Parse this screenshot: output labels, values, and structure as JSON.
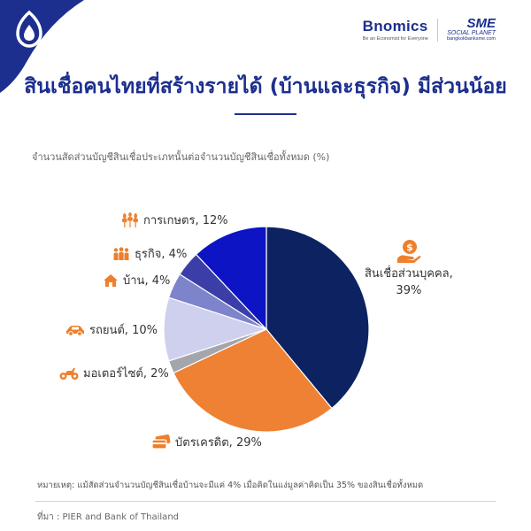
{
  "header": {
    "brand_name": "Bnomics",
    "brand_tagline": "Be an Economist for Everyone",
    "partner_name": "SME",
    "partner_sub": "SOCIAL PLANET",
    "partner_url": "bangkokbanksme.com"
  },
  "colors": {
    "accent": "#1c2f8f",
    "corner": "#1c2f8f",
    "icon": "#ee7f2d"
  },
  "chart_data": {
    "type": "pie",
    "title": "สินเชื่อคนไทยที่สร้างรายได้ (บ้านและธุรกิจ) มีส่วนน้อย",
    "subtitle": "จำนวนสัดส่วนบัญชีสินเชื่อประเภทนั้นต่อจำนวนบัญชีสินเชื่อทั้งหมด (%)",
    "unit": "%",
    "start_angle_deg": 0,
    "direction": "clockwise",
    "slices": [
      {
        "label": "สินเชื่อส่วนบุคคล",
        "value": 39,
        "display": "สินเชื่อส่วนบุคคล,",
        "display2": "39%",
        "color": "#0d2260",
        "icon": "money-hand-icon"
      },
      {
        "label": "บัตรเครดิต",
        "value": 29,
        "display": "บัตรเครดิต, 29%",
        "color": "#ee8133",
        "icon": "credit-card-icon"
      },
      {
        "label": "มอเตอร์ไซต์",
        "value": 2,
        "display": "มอเตอร์ไซต์, 2%",
        "color": "#a4a6ab",
        "icon": "motorcycle-icon"
      },
      {
        "label": "รถยนต์",
        "value": 10,
        "display": "รถยนต์, 10%",
        "color": "#cfd0ee",
        "icon": "car-icon"
      },
      {
        "label": "บ้าน",
        "value": 4,
        "display": "บ้าน, 4%",
        "color": "#7d84cc",
        "icon": "house-icon"
      },
      {
        "label": "ธุรกิจ",
        "value": 4,
        "display": "ธุรกิจ, 4%",
        "color": "#3c3ea8",
        "icon": "business-people-icon"
      },
      {
        "label": "การเกษตร",
        "value": 12,
        "display": "การเกษตร, 12%",
        "color": "#0c14c4",
        "icon": "wheat-icon"
      }
    ]
  },
  "footer": {
    "note": "หมายเหตุ: แม้สัดส่วนจำนวนบัญชีสินเชื่อบ้านจะมีแค่ 4% เมื่อคิดในแง่มูลค่าคิดเป็น 35% ของสินเชื่อทั้งหมด",
    "source": "ที่มา : PIER and Bank of Thailand"
  }
}
